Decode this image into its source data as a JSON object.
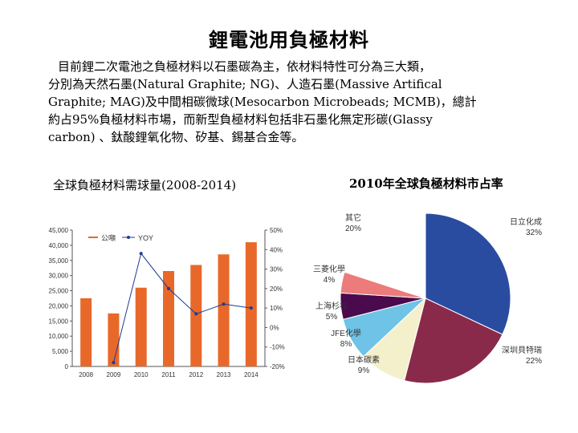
{
  "header": {
    "title": "鋰電池用負極材料"
  },
  "body": {
    "lines": [
      "目前鋰二次電池之負極材料以石墨碳為主，依材料特性可分為三大類，",
      "分別為天然石墨(Natural Graphite; NG)、人造石墨(Massive Artifical",
      "Graphite; MAG)及中間相碳微球(Mesocarbon Microbeads; MCMB)，總計",
      "約占95%負極材料市場，而新型負極材料包括非石墨化無定形碳(Glassy",
      "carbon) 、鈦酸鋰氧化物、矽基、錫基合金等。"
    ]
  },
  "captions": {
    "left": "全球負極材料需球量(2008-2014)",
    "right": "2010年全球負極材料市占率"
  },
  "colors": {
    "bar": "#e8682a",
    "line": "#1f3a93",
    "pie": [
      "#2a4ca0",
      "#8a2a4a",
      "#f4f0cc",
      "#6ec3e6",
      "#4b0a4d",
      "#ec7b7b",
      "#ffffff"
    ]
  },
  "chart_data": [
    {
      "type": "bar",
      "categories": [
        "2008",
        "2009",
        "2010",
        "2011",
        "2012",
        "2013",
        "2014"
      ],
      "series": [
        {
          "name": "公噸",
          "values": [
            22500,
            17500,
            26000,
            31500,
            33500,
            37000,
            41000
          ],
          "axis": "left"
        },
        {
          "name": "YOY",
          "type": "line",
          "values": [
            -18,
            38,
            20,
            7,
            12,
            10
          ],
          "x": [
            "2009",
            "2010",
            "2011",
            "2012",
            "2013",
            "2014"
          ],
          "axis": "right"
        }
      ],
      "yticks_left": [
        "0",
        "5,000",
        "10,000",
        "15,000",
        "20,000",
        "25,000",
        "30,000",
        "35,000",
        "40,000",
        "45,000"
      ],
      "yticks_right": [
        "-20%",
        "-10%",
        "0%",
        "10%",
        "20%",
        "30%",
        "40%",
        "50%"
      ],
      "ylim": [
        0,
        45000
      ],
      "ylim_right": [
        -20,
        50
      ],
      "legend": "top"
    },
    {
      "type": "pie",
      "slices": [
        {
          "name": "日立化成",
          "label": "32%",
          "value": 32
        },
        {
          "name": "深圳貝特瑞",
          "label": "22%",
          "value": 22
        },
        {
          "name": "日本碳素",
          "label": "9%",
          "value": 9
        },
        {
          "name": "JFE化學",
          "label": "8%",
          "value": 8
        },
        {
          "name": "上海杉杉",
          "label": "5%",
          "value": 5
        },
        {
          "name": "三菱化學",
          "label": "4%",
          "value": 4
        },
        {
          "name": "其它",
          "label": "20%",
          "value": 20
        }
      ]
    }
  ]
}
